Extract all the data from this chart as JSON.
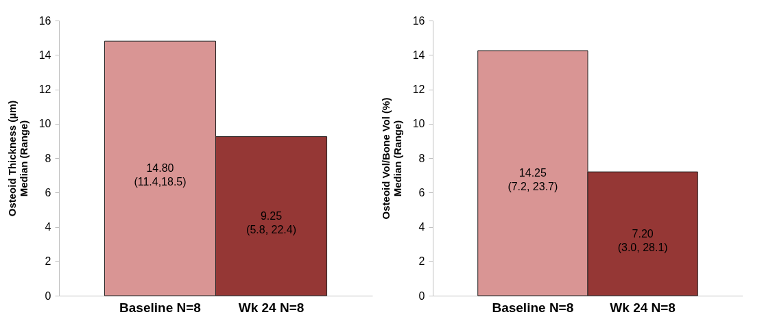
{
  "chart_data": [
    {
      "type": "bar",
      "ylabel": "Osteoid Thickness (µm)\nMedian (Range)",
      "categories": [
        "Baseline N=8",
        "Wk 24 N=8"
      ],
      "values": [
        14.8,
        9.25
      ],
      "colors": [
        "#d99594",
        "#953735"
      ],
      "value_labels": [
        "14.80\n(11.4,18.5)",
        "9.25\n(5.8, 22.4)"
      ],
      "ylim": [
        0,
        16
      ],
      "yticks": [
        0,
        2,
        4,
        6,
        8,
        10,
        12,
        14,
        16
      ]
    },
    {
      "type": "bar",
      "ylabel": "Osteoid Vol/Bone Vol (%)\nMedian (Range)",
      "categories": [
        "Baseline N=8",
        "Wk 24 N=8"
      ],
      "values": [
        14.25,
        7.2
      ],
      "colors": [
        "#d99594",
        "#953735"
      ],
      "value_labels": [
        "14.25\n(7.2, 23.7)",
        "7.20\n(3.0, 28.1)"
      ],
      "ylim": [
        0,
        16
      ],
      "yticks": [
        0,
        2,
        4,
        6,
        8,
        10,
        12,
        14,
        16
      ]
    }
  ]
}
